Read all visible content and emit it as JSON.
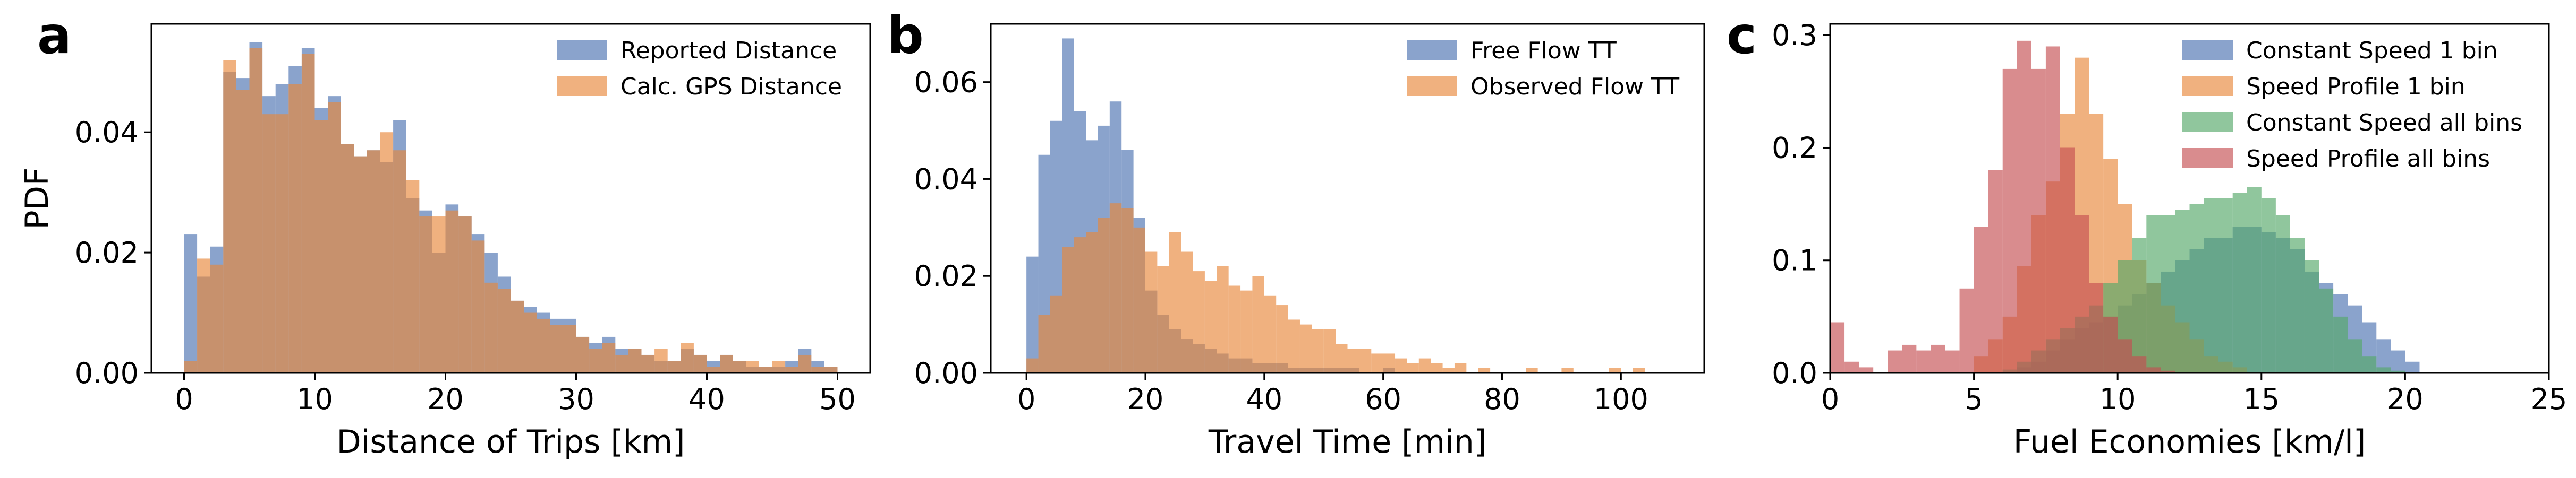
{
  "figure": {
    "panels": [
      {
        "letter": "a"
      },
      {
        "letter": "b"
      },
      {
        "letter": "c"
      }
    ]
  },
  "chart_data": [
    {
      "type": "histogram",
      "panel": "a",
      "xlabel": "Distance of Trips [km]",
      "ylabel": "PDF",
      "xlim": [
        -2.5,
        52.5
      ],
      "ylim": [
        0,
        0.058
      ],
      "xticks": [
        0,
        10,
        20,
        30,
        40,
        50
      ],
      "xtick_labels": [
        "0",
        "10",
        "20",
        "30",
        "40",
        "50"
      ],
      "yticks": [
        0,
        0.02,
        0.04
      ],
      "ytick_labels": [
        "0.00",
        "0.02",
        "0.04"
      ],
      "legend_position": "top-right",
      "bin_width": 1,
      "bin_start": 0,
      "series": [
        {
          "name": "Reported Distance",
          "color": "#4C72B0",
          "values": [
            0.023,
            0.016,
            0.021,
            0.05,
            0.049,
            0.055,
            0.046,
            0.048,
            0.051,
            0.054,
            0.044,
            0.046,
            0.038,
            0.036,
            0.037,
            0.035,
            0.042,
            0.029,
            0.027,
            0.02,
            0.028,
            0.026,
            0.023,
            0.02,
            0.016,
            0.012,
            0.011,
            0.01,
            0.009,
            0.009,
            0.006,
            0.005,
            0.006,
            0.004,
            0.004,
            0.003,
            0.002,
            0.002,
            0.004,
            0.003,
            0.002,
            0.003,
            0.002,
            0.001,
            0.001,
            0.001,
            0.002,
            0.004,
            0.002,
            0.001
          ]
        },
        {
          "name": "Calc. GPS Distance",
          "color": "#E8873A",
          "values": [
            0.002,
            0.019,
            0.018,
            0.052,
            0.047,
            0.054,
            0.043,
            0.043,
            0.048,
            0.053,
            0.042,
            0.045,
            0.038,
            0.036,
            0.037,
            0.04,
            0.037,
            0.032,
            0.026,
            0.026,
            0.027,
            0.026,
            0.022,
            0.015,
            0.014,
            0.012,
            0.01,
            0.009,
            0.008,
            0.008,
            0.006,
            0.004,
            0.005,
            0.003,
            0.004,
            0.003,
            0.004,
            0.002,
            0.005,
            0.003,
            0.001,
            0.003,
            0.002,
            0.002,
            0.001,
            0.002,
            0.001,
            0.003,
            0.001,
            0.001
          ]
        }
      ]
    },
    {
      "type": "histogram",
      "panel": "b",
      "xlabel": "Travel Time [min]",
      "ylabel": "",
      "xlim": [
        -6,
        114
      ],
      "ylim": [
        0,
        0.072
      ],
      "xticks": [
        0,
        20,
        40,
        60,
        80,
        100
      ],
      "xtick_labels": [
        "0",
        "20",
        "40",
        "60",
        "80",
        "100"
      ],
      "yticks": [
        0,
        0.02,
        0.04,
        0.06
      ],
      "ytick_labels": [
        "0.00",
        "0.02",
        "0.04",
        "0.06"
      ],
      "legend_position": "top-right",
      "bin_width": 2,
      "bin_start": 0,
      "series": [
        {
          "name": "Free Flow TT",
          "color": "#4C72B0",
          "values": [
            0.024,
            0.045,
            0.052,
            0.069,
            0.054,
            0.048,
            0.051,
            0.056,
            0.046,
            0.032,
            0.017,
            0.012,
            0.009,
            0.007,
            0.006,
            0.005,
            0.004,
            0.003,
            0.003,
            0.002,
            0.002,
            0.002,
            0.001,
            0.001,
            0.001,
            0.001,
            0.001,
            0.001,
            0.0,
            0.0,
            0.001,
            0.0,
            0.0,
            0.0,
            0.0,
            0.0,
            0.0,
            0.0,
            0.0,
            0.0,
            0.0,
            0.0,
            0.0,
            0.0,
            0.0,
            0.0,
            0.0,
            0.0,
            0.0,
            0.0,
            0.0,
            0.0,
            0.0,
            0.0
          ]
        },
        {
          "name": "Observed Flow TT",
          "color": "#E8873A",
          "values": [
            0.003,
            0.012,
            0.016,
            0.026,
            0.028,
            0.029,
            0.032,
            0.035,
            0.034,
            0.03,
            0.025,
            0.022,
            0.029,
            0.025,
            0.021,
            0.019,
            0.022,
            0.018,
            0.017,
            0.02,
            0.016,
            0.014,
            0.011,
            0.01,
            0.009,
            0.009,
            0.006,
            0.005,
            0.005,
            0.004,
            0.004,
            0.003,
            0.002,
            0.003,
            0.002,
            0.001,
            0.0,
            0.0,
            0.0,
            0.0,
            0.0,
            0.0,
            0.0,
            0.0,
            0.0,
            0.0,
            0.0,
            0.0,
            0.0,
            0.0,
            0.0,
            0.0,
            0.0,
            0.0
          ]
        }
      ],
      "extra_orange_bins": [
        {
          "x": 72,
          "value": 0.002
        },
        {
          "x": 76,
          "value": 0.001
        },
        {
          "x": 84,
          "value": 0.001
        },
        {
          "x": 90,
          "value": 0.001
        },
        {
          "x": 98,
          "value": 0.001
        },
        {
          "x": 102,
          "value": 0.001
        }
      ]
    },
    {
      "type": "histogram",
      "panel": "c",
      "xlabel": "Fuel Economies [km/l]",
      "ylabel": "",
      "xlim": [
        0,
        25
      ],
      "ylim": [
        0,
        0.31
      ],
      "xticks": [
        0,
        5,
        10,
        15,
        20,
        25
      ],
      "xtick_labels": [
        "0",
        "5",
        "10",
        "15",
        "20",
        "25"
      ],
      "yticks": [
        0,
        0.1,
        0.2,
        0.3
      ],
      "ytick_labels": [
        "0.0",
        "0.1",
        "0.2",
        "0.3"
      ],
      "legend_position": "top-right",
      "bin_width": 0.5,
      "bin_start": 0,
      "series": [
        {
          "name": "Constant Speed 1 bin",
          "color": "#4C72B0",
          "values": [
            0,
            0,
            0,
            0,
            0,
            0,
            0,
            0,
            0,
            0,
            0,
            0,
            0,
            0.005,
            0.01,
            0.02,
            0.03,
            0.04,
            0.045,
            0.05,
            0.06,
            0.07,
            0.08,
            0.09,
            0.1,
            0.11,
            0.12,
            0.12,
            0.13,
            0.13,
            0.125,
            0.12,
            0.11,
            0.09,
            0.08,
            0.07,
            0.06,
            0.045,
            0.03,
            0.02,
            0.01
          ]
        },
        {
          "name": "Speed Profile 1 bin",
          "color": "#E8873A",
          "values": [
            0,
            0,
            0,
            0,
            0,
            0,
            0,
            0,
            0,
            0,
            0.015,
            0.03,
            0.05,
            0.095,
            0.14,
            0.17,
            0.23,
            0.28,
            0.23,
            0.19,
            0.15,
            0.1,
            0.08,
            0.06,
            0.045,
            0.03,
            0.015,
            0.01,
            0.005
          ]
        },
        {
          "name": "Constant Speed all bins",
          "color": "#55A868",
          "values": [
            0,
            0,
            0,
            0,
            0,
            0,
            0,
            0,
            0,
            0,
            0,
            0,
            0.003,
            0.01,
            0.02,
            0.03,
            0.04,
            0.05,
            0.06,
            0.08,
            0.1,
            0.12,
            0.14,
            0.14,
            0.145,
            0.15,
            0.155,
            0.155,
            0.16,
            0.165,
            0.155,
            0.14,
            0.12,
            0.1,
            0.075,
            0.05,
            0.03,
            0.015,
            0.005,
            0.002
          ]
        },
        {
          "name": "Speed Profile all bins",
          "color": "#C44E52",
          "values": [
            0.045,
            0.01,
            0.005,
            0,
            0.02,
            0.025,
            0.02,
            0.025,
            0.02,
            0.075,
            0.13,
            0.18,
            0.27,
            0.295,
            0.27,
            0.29,
            0.2,
            0.14,
            0.08,
            0.05,
            0.03,
            0.015,
            0.005,
            0.002
          ]
        }
      ]
    }
  ]
}
